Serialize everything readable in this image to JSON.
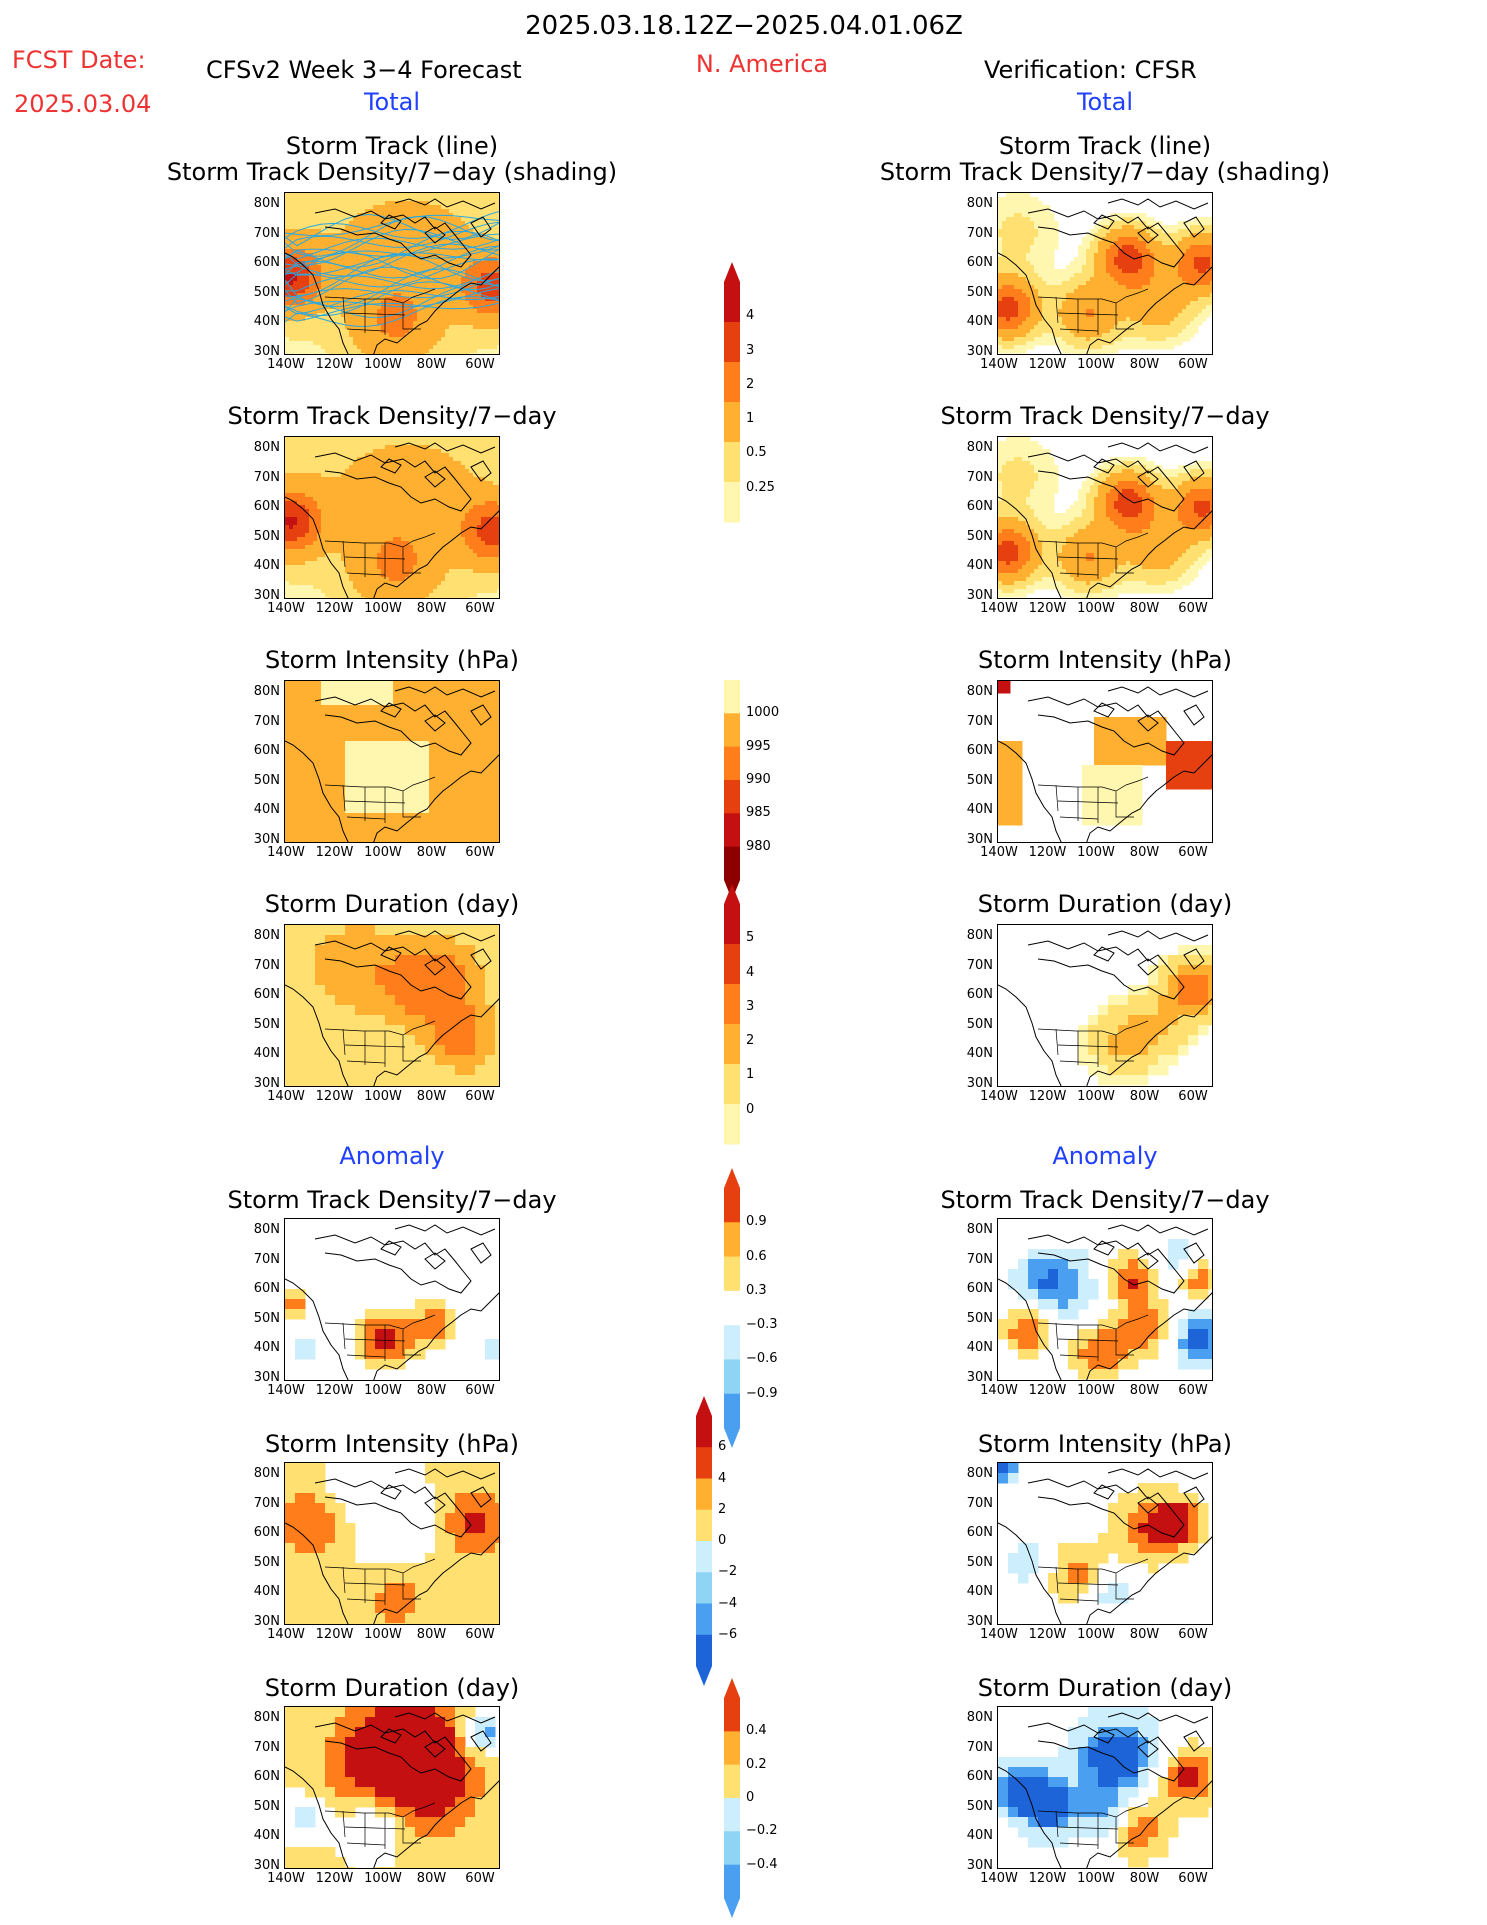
{
  "header": {
    "time_range": "2025.03.18.12Z−2025.04.01.06Z",
    "fcst_label": "FCST Date:",
    "fcst_date": "2025.03.04",
    "model_title": "CFSv2 Week 3−4 Forecast",
    "region": "N. America",
    "verification_title": "Verification: CFSR"
  },
  "sections": {
    "total": "Total",
    "anomaly": "Anomaly"
  },
  "panel_titles": {
    "track_line": "Storm Track (line)",
    "track_shading": "Storm Track Density/7−day (shading)",
    "density": "Storm Track Density/7−day",
    "intensity": "Storm Intensity (hPa)",
    "duration": "Storm Duration (day)"
  },
  "axes": {
    "lat_labels": [
      "80N",
      "70N",
      "60N",
      "50N",
      "40N",
      "30N"
    ],
    "lon_labels": [
      "140W",
      "120W",
      "100W",
      "80W",
      "60W"
    ]
  },
  "colorbars": {
    "density_total": [
      "4",
      "3",
      "2",
      "1",
      "0.5",
      "0.25"
    ],
    "intensity_total": [
      "1000",
      "995",
      "990",
      "985",
      "980"
    ],
    "duration_total": [
      "5",
      "4",
      "3",
      "2",
      "1",
      "0"
    ],
    "density_anom": [
      "0.9",
      "0.6",
      "0.3",
      "−0.3",
      "−0.6",
      "−0.9"
    ],
    "intensity_anom": [
      "6",
      "4",
      "2",
      "0",
      "−2",
      "−4",
      "−6"
    ],
    "duration_anom": [
      "0.4",
      "0.2",
      "0",
      "−0.2",
      "−0.4"
    ]
  },
  "colors": {
    "title_red": "#ee3333",
    "section_blue": "#2040ff",
    "track_line": "#2aa8e0",
    "warm_scale": [
      "#fff7b0",
      "#ffe070",
      "#ffb030",
      "#ff7d1a",
      "#e64010",
      "#c41010",
      "#8e0000"
    ],
    "cool_scale": [
      "#cdeefc",
      "#8fd4f5",
      "#4a9ff0",
      "#1c64d8"
    ]
  }
}
